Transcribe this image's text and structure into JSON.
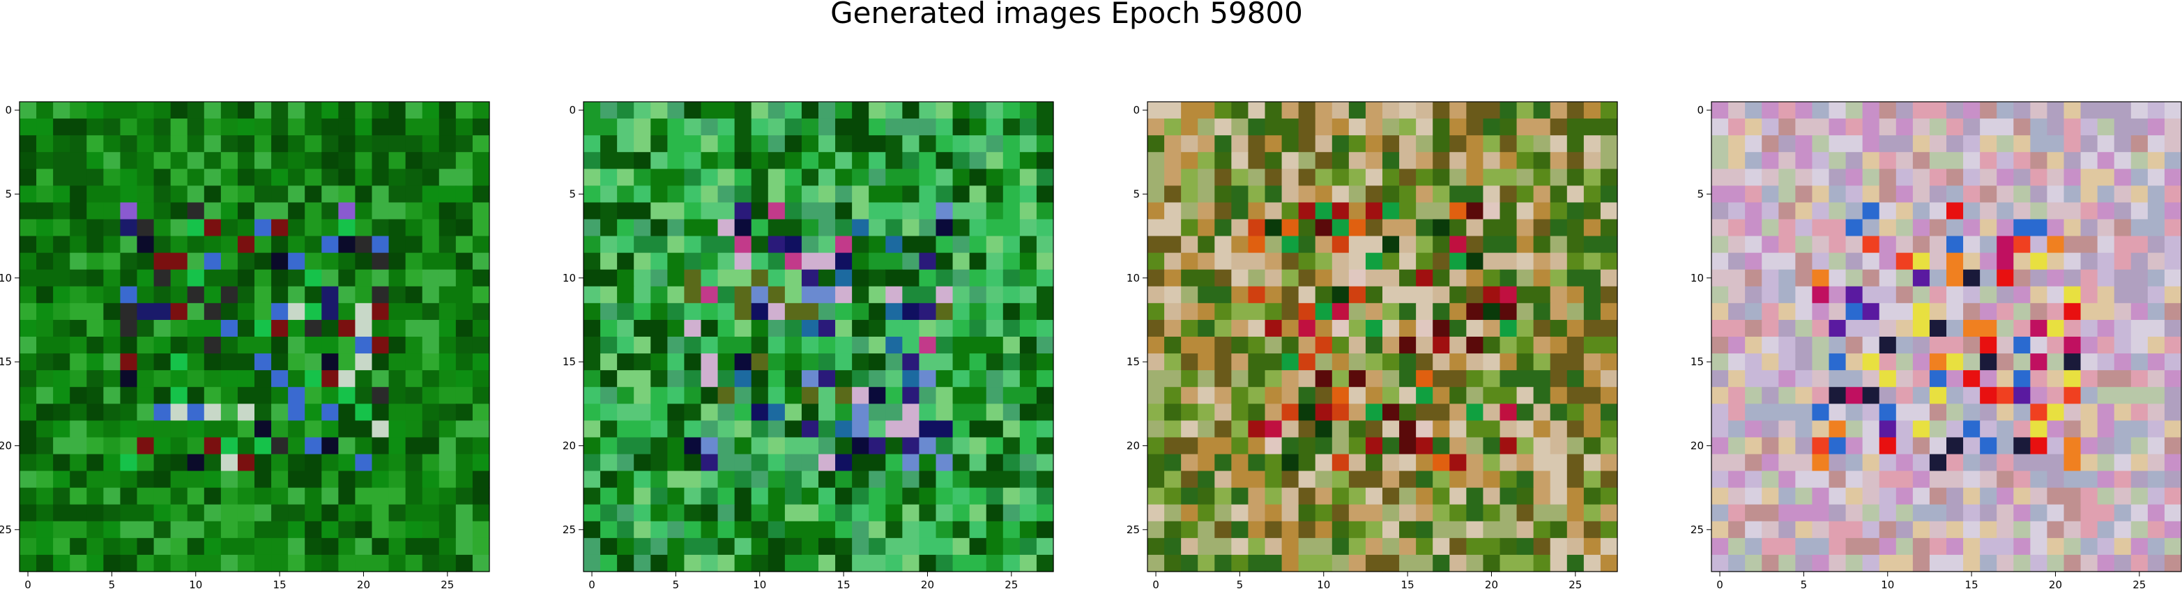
{
  "figure": {
    "title": "Generated images Epoch 59800"
  },
  "chart_data": {
    "type": "heatmap",
    "title": "Generated images Epoch 59800",
    "subplot_count": 4,
    "image_shape": [
      28,
      28,
      3
    ],
    "x_ticks": [
      0,
      5,
      10,
      15,
      20,
      25
    ],
    "y_ticks": [
      0,
      5,
      10,
      15,
      20,
      25
    ],
    "xlim": [
      -0.5,
      27.5
    ],
    "ylim": [
      27.5,
      -0.5
    ],
    "grid": false,
    "legend": "none",
    "subplots": [
      {
        "palette": [
          "#0a6a0a",
          "#118811",
          "#0c7a0c",
          "#1f9a1f",
          "#064806",
          "#2faa2f",
          "#0b5f0b",
          "#3cb043",
          "#0d8e12",
          "#075207"
        ],
        "accents": [
          "#0b0b2a",
          "#1a1a6a",
          "#7a1010",
          "#3a6ad0",
          "#8a5ad0",
          "#c8d8c8",
          "#2a2a2a",
          "#16c24a"
        ]
      },
      {
        "palette": [
          "#1a9a2a",
          "#2ab84a",
          "#0c7a0c",
          "#064806",
          "#3fc46a",
          "#58c878",
          "#0a5a0a",
          "#1c8a3a",
          "#43a36b",
          "#7ad07a"
        ],
        "accents": [
          "#0a0a3a",
          "#2a1a7a",
          "#101060",
          "#c23a8a",
          "#6a8ad0",
          "#d0b0d0",
          "#5a6a1a",
          "#1c6aa0"
        ]
      },
      {
        "palette": [
          "#5a8a1a",
          "#8ab04a",
          "#c8a068",
          "#3a6a10",
          "#d8c8b0",
          "#a0b070",
          "#b88a3a",
          "#6a5a1a",
          "#2a6a1a",
          "#d0b898"
        ],
        "accents": [
          "#a01010",
          "#d04010",
          "#e06010",
          "#5a0a0a",
          "#c01040",
          "#0a3a0a",
          "#e0c8c0",
          "#10a040"
        ]
      },
      {
        "palette": [
          "#d8c0c8",
          "#c8b8d8",
          "#e0a0b0",
          "#b8c8a8",
          "#d8d0e0",
          "#c09090",
          "#a8b0c8",
          "#e0c8a0",
          "#c890c8",
          "#b0a0c0"
        ],
        "accents": [
          "#e81010",
          "#f04020",
          "#f08020",
          "#e8e040",
          "#c01060",
          "#5a1aa0",
          "#1a1a3a",
          "#2a6ad0"
        ]
      }
    ]
  }
}
